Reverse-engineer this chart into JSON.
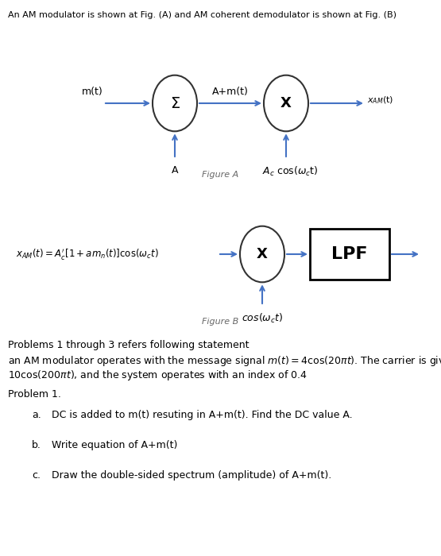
{
  "title_text": "An AM modulator is shown at Fig. (A) and AM coherent demodulator is shown at Fig. (B)",
  "bg_color": "#ffffff",
  "circle_color": "#333333",
  "arrow_color": "#4472c4",
  "problem_statement": "Problems 1 through 3 refers following statement",
  "problem_body1": "an AM modulator operates with the message signal $m(t) = 4\\cos(20\\pi t)$. The carrier is given by",
  "problem_body2": "$10\\cos(200\\pi t)$, and the system operates with an index of 0.4",
  "problem1_header": "Problem 1.",
  "problem_a": "DC is added to m(t) resuting in A+m(t). Find the DC value A.",
  "problem_b": "Write equation of A+m(t)",
  "problem_c": "Draw the double-sided spectrum (amplitude) of A+m(t)."
}
